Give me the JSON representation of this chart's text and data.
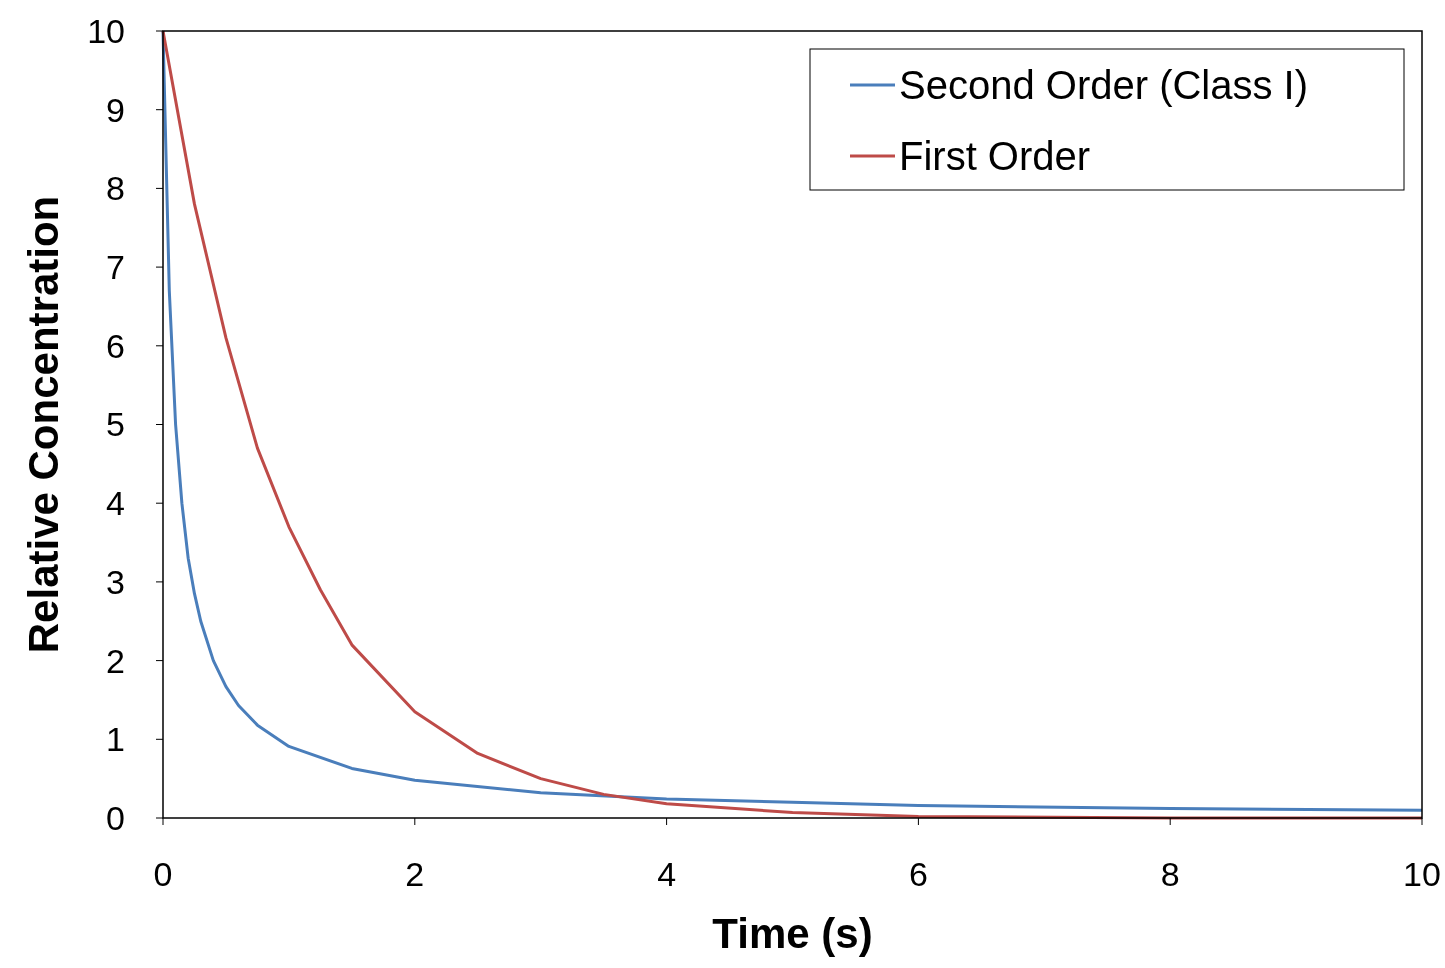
{
  "chart_data": {
    "type": "line",
    "xlabel": "Time (s)",
    "ylabel": "Relative Concentration",
    "xlim": [
      0,
      10
    ],
    "xticks": [
      0,
      2,
      4,
      6,
      8,
      10
    ],
    "ylim": [
      0,
      10
    ],
    "yticks": [
      0,
      1,
      2,
      3,
      4,
      5,
      6,
      7,
      8,
      9,
      10
    ],
    "grid": false,
    "legend": "top right",
    "marker": "none",
    "line_style": "solid",
    "series": [
      {
        "name": "Second Order (Class I)",
        "color": "#4a7ebb",
        "x": [
          0,
          0.05,
          0.1,
          0.15,
          0.2,
          0.25,
          0.3,
          0.4,
          0.5,
          0.6,
          0.75,
          1,
          1.5,
          2,
          3,
          4,
          5,
          6,
          8,
          10
        ],
        "values": [
          10,
          6.7,
          5.0,
          4.0,
          3.3,
          2.85,
          2.5,
          2.0,
          1.67,
          1.43,
          1.18,
          0.91,
          0.63,
          0.48,
          0.32,
          0.24,
          0.2,
          0.16,
          0.12,
          0.1
        ]
      },
      {
        "name": "First Order",
        "color": "#be4b48",
        "x": [
          0,
          0.25,
          0.5,
          0.75,
          1,
          1.25,
          1.5,
          2,
          2.5,
          3,
          3.5,
          4,
          5,
          6,
          8,
          10
        ],
        "values": [
          10,
          7.8,
          6.1,
          4.7,
          3.7,
          2.9,
          2.2,
          1.35,
          0.82,
          0.5,
          0.3,
          0.18,
          0.07,
          0.02,
          0,
          0
        ]
      }
    ]
  }
}
